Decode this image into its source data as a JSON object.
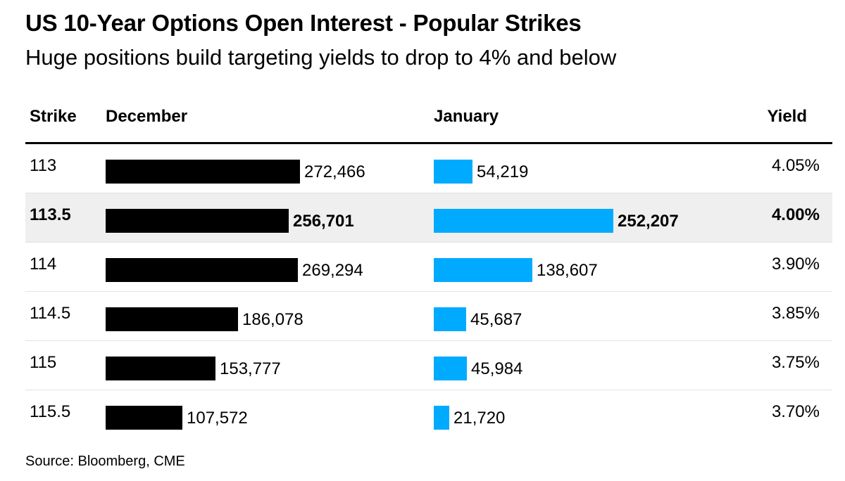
{
  "colors": {
    "december": "#000000",
    "january": "#00aaff",
    "highlight_row": "#efefef"
  },
  "chart_data": {
    "type": "bar",
    "title": "US 10-Year Options Open Interest - Popular Strikes",
    "subtitle": "Huge positions build targeting yields to drop to 4% and below",
    "columns": {
      "strike": "Strike",
      "december": "December",
      "january": "January",
      "yield": "Yield"
    },
    "categories": [
      "113",
      "113.5",
      "114",
      "114.5",
      "115",
      "115.5"
    ],
    "series": [
      {
        "name": "December",
        "values": [
          272466,
          256701,
          269294,
          186078,
          153777,
          107572
        ],
        "labels": [
          "272,466",
          "256,701",
          "269,294",
          "186,078",
          "153,777",
          "107,572"
        ]
      },
      {
        "name": "January",
        "values": [
          54219,
          252207,
          138607,
          45687,
          45984,
          21720
        ],
        "labels": [
          "54,219",
          "252,207",
          "138,607",
          "45,687",
          "45,984",
          "21,720"
        ]
      }
    ],
    "yields": [
      "4.05%",
      "4.00%",
      "3.90%",
      "3.85%",
      "3.75%",
      "3.70%"
    ],
    "highlighted_row": 1,
    "source": "Source: Bloomberg, CME"
  }
}
